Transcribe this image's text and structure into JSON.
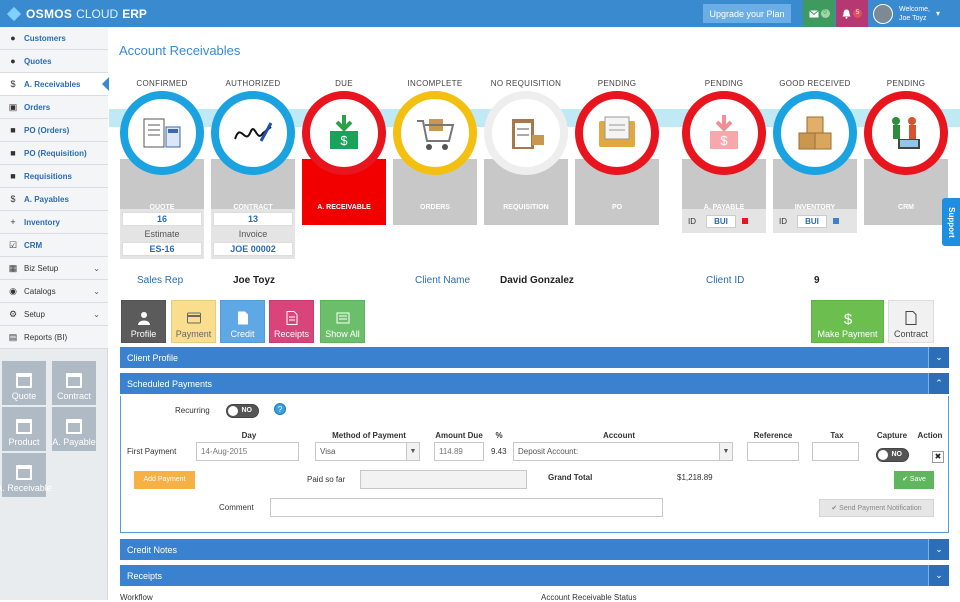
{
  "app": {
    "brand_main": "OSMOS",
    "brand_cloud": "CLOUD",
    "brand_erp": "ERP"
  },
  "topbar": {
    "upgrade_label": "Upgrade your Plan",
    "mail_count": "0",
    "bell_count": "5",
    "welcome": "Welcome,",
    "user_name": "Joe Toyz"
  },
  "sidebar": {
    "items": [
      {
        "label": "Customers",
        "icon": "user-icon"
      },
      {
        "label": "Quotes",
        "icon": "user-icon"
      },
      {
        "label": "A. Receivables",
        "icon": "dollar-icon"
      },
      {
        "label": "Orders",
        "icon": "cart-icon"
      },
      {
        "label": "PO (Orders)",
        "icon": "briefcase-icon"
      },
      {
        "label": "PO (Requisition)",
        "icon": "briefcase-icon"
      },
      {
        "label": "Requisitions",
        "icon": "briefcase-icon"
      },
      {
        "label": "A. Payables",
        "icon": "dollar-icon"
      },
      {
        "label": "Inventory",
        "icon": "plus-icon"
      },
      {
        "label": "CRM",
        "icon": "checkbox-icon"
      },
      {
        "label": "Biz Setup",
        "icon": "grid-icon"
      },
      {
        "label": "Catalogs",
        "icon": "palette-icon"
      },
      {
        "label": "Setup",
        "icon": "gear-icon"
      },
      {
        "label": "Reports (BI)",
        "icon": "chart-icon"
      }
    ],
    "tiles": [
      "Quote",
      "Contract",
      "Product",
      "A. Payable",
      "A. Receivable"
    ]
  },
  "page": {
    "title": "Account Receivables"
  },
  "workflow": [
    {
      "top": "CONFIRMED",
      "card": "QUOTE",
      "ring": "#1aa3e0"
    },
    {
      "top": "AUTHORIZED",
      "card": "CONTRACT",
      "ring": "#1aa3e0"
    },
    {
      "top": "DUE",
      "card": "A. RECEIVABLE",
      "ring": "#e8141e"
    },
    {
      "top": "INCOMPLETE",
      "card": "ORDERS",
      "ring": "#f3bf10"
    },
    {
      "top": "NO REQUISITION",
      "card": "REQUISITION",
      "ring": "#eeeeee"
    },
    {
      "top": "PENDING",
      "card": "PO",
      "ring": "#e8141e"
    },
    {
      "top": "PENDING",
      "card": "A. PAYABLE",
      "ring": "#e8141e"
    },
    {
      "top": "GOOD RECEIVED",
      "card": "INVENTORY",
      "ring": "#1aa3e0"
    },
    {
      "top": "PENDING",
      "card": "CRM",
      "ring": "#e8141e"
    }
  ],
  "quote_box": {
    "number": "16",
    "type": "Estimate",
    "code": "ES-16"
  },
  "contract_box": {
    "number": "13",
    "type": "Invoice",
    "code": "JOE 00002"
  },
  "payable_id": {
    "label": "ID",
    "value": "BUI",
    "marker": "#e8141e"
  },
  "inventory_id": {
    "label": "ID",
    "value": "BUI",
    "marker": "#3a82d0"
  },
  "client": {
    "sales_rep_label": "Sales Rep",
    "sales_rep": "Joe Toyz",
    "client_name_label": "Client Name",
    "client_name": "David Gonzalez",
    "client_id_label": "Client ID",
    "client_id": "9"
  },
  "actions": {
    "profile": "Profile",
    "payment": "Payment",
    "credit": "Credit",
    "receipts": "Receipts",
    "show_all": "Show All",
    "make_payment": "Make Payment",
    "contract": "Contract"
  },
  "panels": {
    "client_profile": "Client Profile",
    "scheduled_payments": "Scheduled Payments",
    "credit_notes": "Credit Notes",
    "receipts": "Receipts"
  },
  "schedule": {
    "recurring_label": "Recurring",
    "recurring_value": "NO",
    "headers": {
      "day": "Day",
      "method": "Method of Payment",
      "amount": "Amount Due",
      "pct": "%",
      "account": "Account",
      "reference": "Reference",
      "tax": "Tax",
      "capture": "Capture",
      "action": "Action"
    },
    "row_label": "First Payment",
    "day": "14-Aug-2015",
    "method": "Visa",
    "amount": "114.89",
    "pct": "9.43",
    "account": "Deposit Account:",
    "capture": "NO",
    "add_payment": "Add Payment",
    "paid_so_far_label": "Paid so far",
    "grand_total_label": "Grand Total",
    "grand_total": "$1,218.89",
    "save": "Save",
    "comment_label": "Comment",
    "send_notification": "Send Payment Notification"
  },
  "footer": {
    "workflow_label": "Workflow",
    "status_label": "Account Receivable Status"
  },
  "support": "Support"
}
